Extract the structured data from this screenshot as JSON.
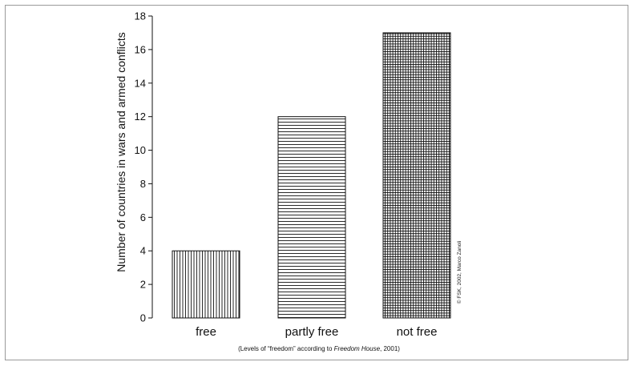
{
  "chart_data": {
    "type": "bar",
    "categories": [
      "free",
      "partly free",
      "not free"
    ],
    "values": [
      4,
      12,
      17
    ],
    "patterns": [
      "vertical-lines",
      "horizontal-lines",
      "crosshatch"
    ],
    "ylabel": "Number of countries in wars and armed conflicts",
    "ylim": [
      0,
      18
    ],
    "yticks": [
      0,
      2,
      4,
      6,
      8,
      10,
      12,
      14,
      16,
      18
    ],
    "grid": false,
    "footnote": {
      "before": "(Levels of “freedom” according to ",
      "source": "Freedom House",
      "after": ", 2001)"
    },
    "credit": "© FSK, 2002, Marco Zanoli"
  }
}
